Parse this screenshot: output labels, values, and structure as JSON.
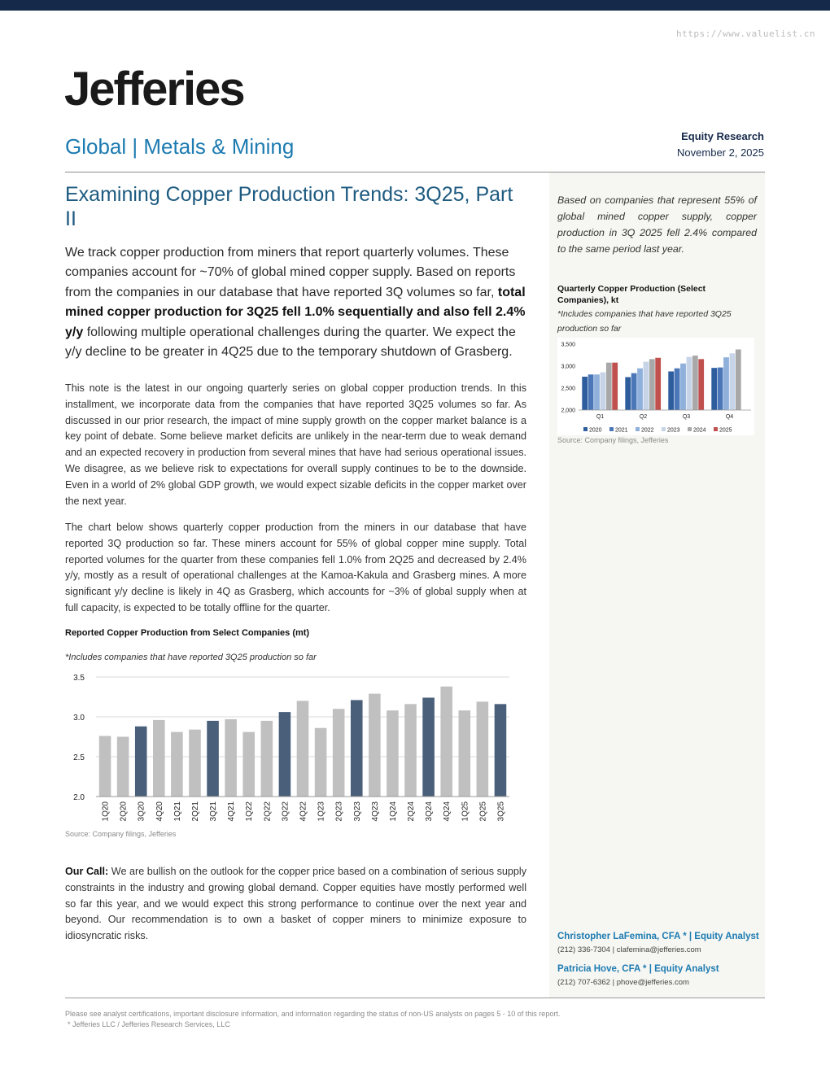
{
  "header": {
    "watermark": "https://www.valuelist.cn",
    "logo": "Jefferies",
    "sector": "Global | Metals & Mining",
    "report_type": "Equity Research",
    "date": "November 2, 2025"
  },
  "title": "Examining Copper Production Trends: 3Q25, Part II",
  "lede": {
    "part1": "We track copper production from miners that report quarterly volumes. These companies account for ~70% of global mined copper supply. Based on reports from the companies in our database that have reported 3Q volumes so far, ",
    "bold": "total mined copper production for 3Q25 fell 1.0% sequentially and also fell 2.4% y/y",
    "part2": " following multiple operational challenges during the quarter. We expect the y/y decline to be greater in 4Q25 due to the temporary shutdown of Grasberg."
  },
  "paragraphs": {
    "p1": "This note is the latest in our ongoing quarterly series on global copper production trends. In this installment, we incorporate data from the companies that have reported 3Q25 volumes so far. As discussed in our prior research, the impact of mine supply growth on the copper market balance is a key point of debate. Some believe market deficits are unlikely in the near-term due to weak demand and an expected recovery in production from several mines that have had serious operational issues. We disagree, as we believe risk to expectations for overall supply continues to be to the downside. Even in a world of 2% global GDP growth, we would expect sizable deficits in the copper market over the next year.",
    "p2": "The chart below shows quarterly copper production from the miners in our database that have reported 3Q production so far. These miners account for 55% of global copper mine supply. Total reported volumes for the quarter from these companies fell 1.0% from 2Q25 and decreased by 2.4% y/y, mostly as a result of operational challenges at the Kamoa-Kakula and Grasberg mines. A more significant y/y decline is likely in 4Q as Grasberg, which accounts for ~3% of global supply when at full capacity, is expected to be totally offline for the quarter."
  },
  "our_call": {
    "label": "Our Call:",
    "text": " We are bullish on the outlook for the copper price based on a combination of serious supply constraints in the industry and growing global demand. Copper equities have mostly performed well so far this year, and we would expect this strong performance to continue over the next year and beyond. Our recommendation is to own a basket of copper miners to minimize exposure to idiosyncratic risks."
  },
  "sidebar": {
    "quote": "Based on companies that represent 55% of global mined copper supply, copper production in 3Q 2025 fell 2.4% compared to the same period last year.",
    "chart_title": "Quarterly Copper Production (Select Companies), kt",
    "chart_sub": "*Includes companies that have reported 3Q25 production so far",
    "chart_source": "Source: Company filings, Jefferies"
  },
  "analysts": [
    {
      "name": "Christopher LaFemina, CFA *  | Equity Analyst",
      "contact": "(212) 336-7304 | clafemina@jefferies.com"
    },
    {
      "name": "Patricia Hove, CFA *  | Equity Analyst",
      "contact": "(212) 707-6362 | phove@jefferies.com"
    }
  ],
  "footer": {
    "disclaimer": "Please see analyst certifications, important disclosure information, and information regarding the status of non-US analysts on pages  5 - 10 of this report.",
    "entities": "* Jefferies LLC / Jefferies Research Services, LLC"
  },
  "colors": {
    "navy": "#15294a",
    "accent_blue": "#1d7bb1",
    "bar_dark": "#4a5f7a",
    "bar_light": "#c0c0c0"
  },
  "chart_data": [
    {
      "type": "bar",
      "title": "Reported Copper Production from Select Companies (mt)",
      "subtitle": "*Includes companies that have reported 3Q25 production so far",
      "source": "Source: Company filings, Jefferies",
      "categories": [
        "1Q20",
        "2Q20",
        "3Q20",
        "4Q20",
        "1Q21",
        "2Q21",
        "3Q21",
        "4Q21",
        "1Q22",
        "2Q22",
        "3Q22",
        "4Q22",
        "1Q23",
        "2Q23",
        "3Q23",
        "4Q23",
        "1Q24",
        "2Q24",
        "3Q24",
        "4Q24",
        "1Q25",
        "2Q25",
        "3Q25"
      ],
      "values": [
        2.76,
        2.75,
        2.88,
        2.96,
        2.81,
        2.84,
        2.95,
        2.97,
        2.81,
        2.95,
        3.06,
        3.2,
        2.86,
        3.1,
        3.21,
        3.29,
        3.08,
        3.16,
        3.24,
        3.38,
        3.08,
        3.19,
        3.16
      ],
      "highlight": [
        "3Q20",
        "3Q21",
        "3Q22",
        "3Q23",
        "3Q24",
        "3Q25"
      ],
      "yticks": [
        "2.0",
        "2.5",
        "3.0",
        "3.5"
      ],
      "ylim": [
        2.0,
        3.5
      ]
    },
    {
      "type": "bar",
      "title": "Quarterly Copper Production (Select Companies), kt",
      "categories": [
        "Q1",
        "Q2",
        "Q3",
        "Q4"
      ],
      "yticks": [
        "2,000",
        "2,500",
        "3,000",
        "3,500"
      ],
      "ylim": [
        2000,
        3500
      ],
      "legend_position": "bottom",
      "series": [
        {
          "name": "2020",
          "color": "#2e5d9e",
          "values": [
            2760,
            2750,
            2880,
            2960
          ]
        },
        {
          "name": "2021",
          "color": "#4b77b8",
          "values": [
            2810,
            2840,
            2950,
            2970
          ]
        },
        {
          "name": "2022",
          "color": "#8fb0da",
          "values": [
            2810,
            2950,
            3060,
            3200
          ]
        },
        {
          "name": "2023",
          "color": "#c7d4e8",
          "values": [
            2860,
            3100,
            3210,
            3290
          ]
        },
        {
          "name": "2024",
          "color": "#a8a8a8",
          "values": [
            3080,
            3160,
            3240,
            3380
          ]
        },
        {
          "name": "2025",
          "color": "#c0504d",
          "values": [
            3080,
            3190,
            3160,
            null
          ]
        }
      ]
    }
  ]
}
